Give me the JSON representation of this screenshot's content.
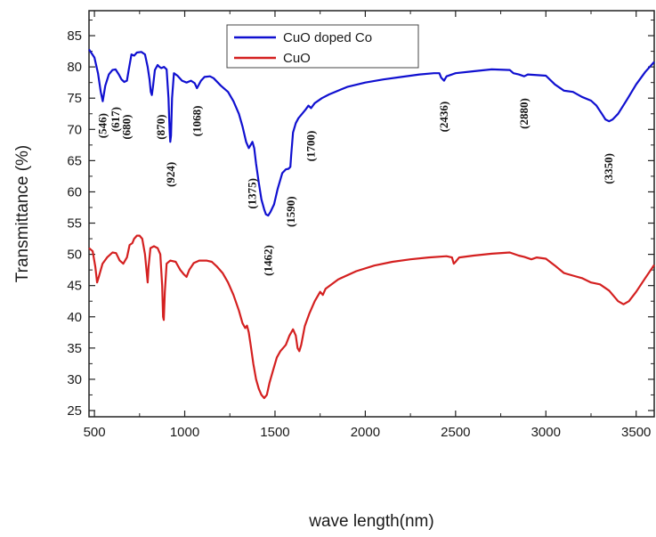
{
  "chart_data": {
    "type": "line",
    "xlabel": "wave length(nm)",
    "ylabel": "Transmittance (%)",
    "xlim": [
      470,
      3600
    ],
    "ylim": [
      24,
      89
    ],
    "xticks": [
      500,
      1000,
      1500,
      2000,
      2500,
      3000,
      3500
    ],
    "yticks": [
      25,
      30,
      35,
      40,
      45,
      50,
      55,
      60,
      65,
      70,
      75,
      80,
      85
    ],
    "legend_position": "top-center",
    "grid": false,
    "series": [
      {
        "name": "CuO doped Co",
        "color": "#1010d0",
        "points": [
          [
            470,
            82.8
          ],
          [
            500,
            81.5
          ],
          [
            520,
            79
          ],
          [
            535,
            76
          ],
          [
            546,
            74.5
          ],
          [
            560,
            77
          ],
          [
            580,
            78.8
          ],
          [
            600,
            79.5
          ],
          [
            617,
            79.6
          ],
          [
            635,
            78.8
          ],
          [
            650,
            78
          ],
          [
            665,
            77.6
          ],
          [
            680,
            77.8
          ],
          [
            690,
            79.5
          ],
          [
            705,
            82
          ],
          [
            720,
            81.8
          ],
          [
            735,
            82.3
          ],
          [
            760,
            82.4
          ],
          [
            780,
            82
          ],
          [
            795,
            80
          ],
          [
            805,
            78
          ],
          [
            812,
            76
          ],
          [
            818,
            75.5
          ],
          [
            825,
            77
          ],
          [
            835,
            79.5
          ],
          [
            850,
            80.3
          ],
          [
            860,
            80
          ],
          [
            870,
            79.8
          ],
          [
            885,
            80
          ],
          [
            900,
            79.6
          ],
          [
            910,
            75
          ],
          [
            916,
            70
          ],
          [
            920,
            68
          ],
          [
            924,
            69
          ],
          [
            930,
            75
          ],
          [
            940,
            79
          ],
          [
            960,
            78.6
          ],
          [
            985,
            77.8
          ],
          [
            1010,
            77.5
          ],
          [
            1035,
            77.8
          ],
          [
            1055,
            77.4
          ],
          [
            1068,
            76.6
          ],
          [
            1090,
            77.8
          ],
          [
            1110,
            78.4
          ],
          [
            1140,
            78.5
          ],
          [
            1160,
            78.2
          ],
          [
            1200,
            77
          ],
          [
            1240,
            76
          ],
          [
            1270,
            74.5
          ],
          [
            1300,
            72.5
          ],
          [
            1320,
            70.5
          ],
          [
            1340,
            68
          ],
          [
            1355,
            67
          ],
          [
            1365,
            67.5
          ],
          [
            1375,
            68
          ],
          [
            1385,
            67
          ],
          [
            1395,
            64.5
          ],
          [
            1410,
            61.5
          ],
          [
            1425,
            58.8
          ],
          [
            1440,
            57.2
          ],
          [
            1450,
            56.4
          ],
          [
            1462,
            56.2
          ],
          [
            1475,
            56.8
          ],
          [
            1495,
            58
          ],
          [
            1515,
            60.5
          ],
          [
            1540,
            63
          ],
          [
            1560,
            63.6
          ],
          [
            1575,
            63.7
          ],
          [
            1585,
            64
          ],
          [
            1590,
            66
          ],
          [
            1600,
            69.5
          ],
          [
            1615,
            71
          ],
          [
            1630,
            71.8
          ],
          [
            1650,
            72.5
          ],
          [
            1670,
            73.2
          ],
          [
            1685,
            73.8
          ],
          [
            1700,
            73.4
          ],
          [
            1720,
            74.2
          ],
          [
            1760,
            75
          ],
          [
            1800,
            75.6
          ],
          [
            1900,
            76.8
          ],
          [
            2000,
            77.5
          ],
          [
            2100,
            78
          ],
          [
            2200,
            78.4
          ],
          [
            2300,
            78.8
          ],
          [
            2380,
            79
          ],
          [
            2410,
            79
          ],
          [
            2420,
            78.3
          ],
          [
            2436,
            77.8
          ],
          [
            2450,
            78.5
          ],
          [
            2500,
            79
          ],
          [
            2600,
            79.3
          ],
          [
            2700,
            79.6
          ],
          [
            2800,
            79.5
          ],
          [
            2820,
            79
          ],
          [
            2850,
            78.8
          ],
          [
            2880,
            78.5
          ],
          [
            2900,
            78.8
          ],
          [
            3000,
            78.6
          ],
          [
            3050,
            77.2
          ],
          [
            3100,
            76.2
          ],
          [
            3150,
            76
          ],
          [
            3200,
            75.2
          ],
          [
            3250,
            74.6
          ],
          [
            3280,
            73.8
          ],
          [
            3310,
            72.5
          ],
          [
            3330,
            71.6
          ],
          [
            3350,
            71.3
          ],
          [
            3370,
            71.6
          ],
          [
            3400,
            72.5
          ],
          [
            3450,
            74.8
          ],
          [
            3500,
            77.2
          ],
          [
            3550,
            79.2
          ],
          [
            3600,
            80.8
          ]
        ]
      },
      {
        "name": "CuO",
        "color": "#d42020",
        "points": [
          [
            470,
            51
          ],
          [
            490,
            50.5
          ],
          [
            505,
            48
          ],
          [
            515,
            45.5
          ],
          [
            525,
            46.5
          ],
          [
            545,
            48.5
          ],
          [
            570,
            49.5
          ],
          [
            600,
            50.3
          ],
          [
            620,
            50.2
          ],
          [
            640,
            49
          ],
          [
            660,
            48.5
          ],
          [
            680,
            49.5
          ],
          [
            695,
            51.5
          ],
          [
            710,
            51.8
          ],
          [
            720,
            52.5
          ],
          [
            735,
            53
          ],
          [
            750,
            53
          ],
          [
            765,
            52.5
          ],
          [
            780,
            50
          ],
          [
            790,
            47
          ],
          [
            795,
            45.5
          ],
          [
            800,
            48
          ],
          [
            810,
            51
          ],
          [
            830,
            51.3
          ],
          [
            850,
            51
          ],
          [
            865,
            50
          ],
          [
            875,
            45
          ],
          [
            880,
            40
          ],
          [
            884,
            39.5
          ],
          [
            890,
            44
          ],
          [
            900,
            48.5
          ],
          [
            920,
            49
          ],
          [
            950,
            48.8
          ],
          [
            975,
            47.5
          ],
          [
            995,
            46.8
          ],
          [
            1010,
            46.4
          ],
          [
            1025,
            47.5
          ],
          [
            1050,
            48.6
          ],
          [
            1080,
            49
          ],
          [
            1120,
            49
          ],
          [
            1150,
            48.8
          ],
          [
            1180,
            48
          ],
          [
            1210,
            47
          ],
          [
            1240,
            45.5
          ],
          [
            1270,
            43.5
          ],
          [
            1300,
            41
          ],
          [
            1320,
            39
          ],
          [
            1335,
            38.2
          ],
          [
            1345,
            38.6
          ],
          [
            1355,
            37.5
          ],
          [
            1365,
            35.5
          ],
          [
            1380,
            32.5
          ],
          [
            1395,
            30
          ],
          [
            1410,
            28.5
          ],
          [
            1425,
            27.5
          ],
          [
            1440,
            27
          ],
          [
            1455,
            27.5
          ],
          [
            1470,
            29.5
          ],
          [
            1490,
            31.5
          ],
          [
            1510,
            33.5
          ],
          [
            1530,
            34.5
          ],
          [
            1560,
            35.5
          ],
          [
            1580,
            37
          ],
          [
            1600,
            38
          ],
          [
            1615,
            37
          ],
          [
            1625,
            35
          ],
          [
            1635,
            34.5
          ],
          [
            1645,
            35.5
          ],
          [
            1665,
            38.5
          ],
          [
            1690,
            40.5
          ],
          [
            1720,
            42.5
          ],
          [
            1750,
            44
          ],
          [
            1765,
            43.5
          ],
          [
            1780,
            44.5
          ],
          [
            1850,
            46
          ],
          [
            1950,
            47.3
          ],
          [
            2050,
            48.2
          ],
          [
            2150,
            48.8
          ],
          [
            2250,
            49.2
          ],
          [
            2350,
            49.5
          ],
          [
            2450,
            49.7
          ],
          [
            2480,
            49.5
          ],
          [
            2490,
            48.5
          ],
          [
            2500,
            48.8
          ],
          [
            2520,
            49.5
          ],
          [
            2600,
            49.8
          ],
          [
            2700,
            50.1
          ],
          [
            2800,
            50.3
          ],
          [
            2850,
            49.8
          ],
          [
            2880,
            49.6
          ],
          [
            2920,
            49.2
          ],
          [
            2950,
            49.5
          ],
          [
            3000,
            49.3
          ],
          [
            3050,
            48.2
          ],
          [
            3100,
            47
          ],
          [
            3150,
            46.6
          ],
          [
            3200,
            46.2
          ],
          [
            3250,
            45.5
          ],
          [
            3300,
            45.2
          ],
          [
            3350,
            44.2
          ],
          [
            3400,
            42.5
          ],
          [
            3430,
            42
          ],
          [
            3460,
            42.5
          ],
          [
            3500,
            44
          ],
          [
            3550,
            46.2
          ],
          [
            3600,
            48.3
          ]
        ]
      }
    ],
    "annotations": [
      {
        "text": "(546)",
        "x": 546,
        "y": 72.6
      },
      {
        "text": "(617)",
        "x": 617,
        "y": 73.6
      },
      {
        "text": "(680)",
        "x": 680,
        "y": 72.4
      },
      {
        "text": "(870)",
        "x": 870,
        "y": 72.4
      },
      {
        "text": "(924)",
        "x": 924,
        "y": 64.8
      },
      {
        "text": "(1068)",
        "x": 1068,
        "y": 73.8
      },
      {
        "text": "(1375)",
        "x": 1375,
        "y": 62.2
      },
      {
        "text": "(1462)",
        "x": 1462,
        "y": 51.5
      },
      {
        "text": "(1590)",
        "x": 1590,
        "y": 59.3
      },
      {
        "text": "(1700)",
        "x": 1700,
        "y": 69.8
      },
      {
        "text": "(2436)",
        "x": 2436,
        "y": 74.5
      },
      {
        "text": "(2880)",
        "x": 2880,
        "y": 75
      },
      {
        "text": "(3350)",
        "x": 3350,
        "y": 66.2
      }
    ]
  }
}
